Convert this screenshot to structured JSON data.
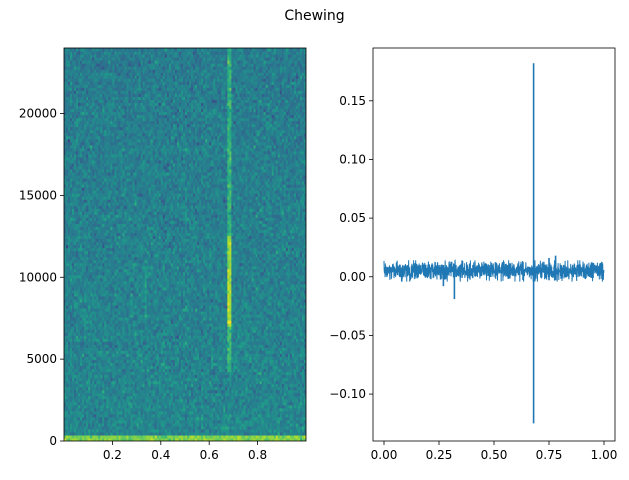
{
  "figure": {
    "title": "Chewing"
  },
  "chart_data": [
    {
      "type": "heatmap",
      "name": "spectrogram",
      "xlabel": "",
      "ylabel": "",
      "xlim": [
        0.0,
        1.0
      ],
      "ylim": [
        0,
        24000
      ],
      "x_ticks": [
        0.2,
        0.4,
        0.6,
        0.8
      ],
      "x_tick_labels": [
        "0.2",
        "0.4",
        "0.6",
        "0.8"
      ],
      "y_ticks": [
        0,
        5000,
        10000,
        15000,
        20000
      ],
      "y_tick_labels": [
        "0",
        "5000",
        "10000",
        "15000",
        "20000"
      ],
      "colormap": "viridis",
      "grid": false,
      "features": [
        {
          "kind": "broadband-burst",
          "time": 0.685,
          "freq_range": [
            4300,
            24000
          ],
          "peak_freq_range": [
            7000,
            12500
          ]
        },
        {
          "kind": "faint-burst",
          "time": 0.335,
          "freq_range": [
            7500,
            11000
          ]
        },
        {
          "kind": "faint-burst",
          "time": 0.28,
          "freq_range": [
            7500,
            9000
          ]
        },
        {
          "kind": "low-frequency-band",
          "freq_range": [
            0,
            300
          ]
        }
      ]
    },
    {
      "type": "line",
      "name": "waveform",
      "xlabel": "",
      "ylabel": "",
      "xlim": [
        -0.05,
        1.05
      ],
      "ylim": [
        -0.14,
        0.195
      ],
      "x_ticks": [
        0.0,
        0.25,
        0.5,
        0.75,
        1.0
      ],
      "x_tick_labels": [
        "0.00",
        "0.25",
        "0.50",
        "0.75",
        "1.00"
      ],
      "y_ticks": [
        -0.1,
        -0.05,
        0.0,
        0.05,
        0.1,
        0.15
      ],
      "y_tick_labels": [
        "−0.10",
        "−0.05",
        "0.00",
        "0.05",
        "0.10",
        "0.15"
      ],
      "color": "#1f77b4",
      "grid": false,
      "x": [
        0.0,
        1.0
      ],
      "baseline_band": [
        -0.002,
        0.012
      ],
      "spikes": [
        {
          "x": 0.68,
          "min": -0.125,
          "max": 0.182
        },
        {
          "x": 0.32,
          "min": -0.019,
          "max": 0.011
        },
        {
          "x": 0.27,
          "min": -0.008,
          "max": 0.01
        },
        {
          "x": 0.78,
          "min": -0.003,
          "max": 0.018
        },
        {
          "x": 0.75,
          "min": -0.003,
          "max": 0.016
        }
      ]
    }
  ]
}
